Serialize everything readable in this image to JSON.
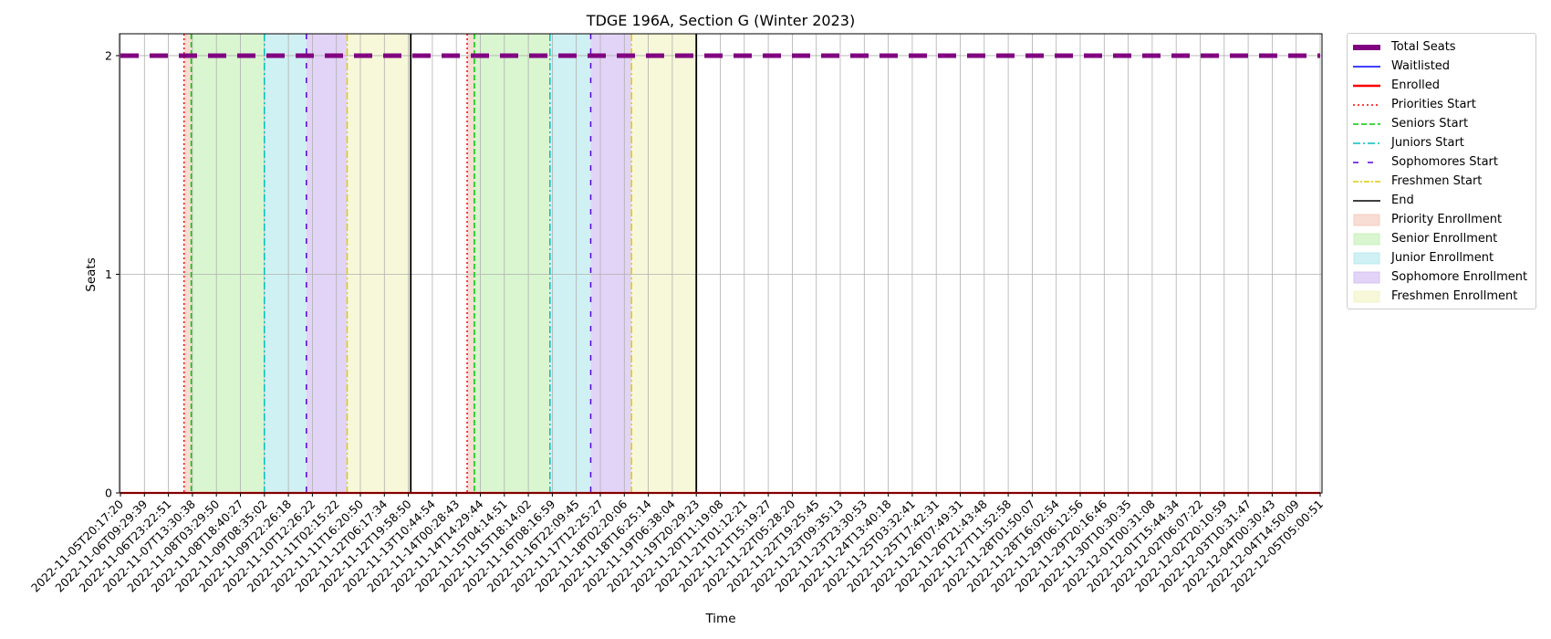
{
  "chart_data": {
    "type": "line",
    "title": "TDGE 196A, Section G (Winter 2023)",
    "xlabel": "Time",
    "ylabel": "Seats",
    "ylim": [
      0,
      2.1
    ],
    "yticks": [
      0,
      1,
      2
    ],
    "grid": true,
    "legend_position": "outside-right",
    "x_ticks": [
      "2022-11-05T20:17:20",
      "2022-11-06T09:29:39",
      "2022-11-06T23:22:51",
      "2022-11-07T13:30:38",
      "2022-11-08T03:29:50",
      "2022-11-08T18:40:27",
      "2022-11-09T08:35:02",
      "2022-11-09T22:26:18",
      "2022-11-10T12:26:22",
      "2022-11-11T02:15:22",
      "2022-11-11T16:20:50",
      "2022-11-12T06:17:34",
      "2022-11-12T19:58:50",
      "2022-11-13T10:44:54",
      "2022-11-14T00:28:43",
      "2022-11-14T14:29:44",
      "2022-11-15T04:14:51",
      "2022-11-15T18:14:02",
      "2022-11-16T08:16:59",
      "2022-11-16T22:09:45",
      "2022-11-17T12:25:27",
      "2022-11-18T02:20:06",
      "2022-11-18T16:25:14",
      "2022-11-19T06:38:04",
      "2022-11-19T20:29:23",
      "2022-11-20T11:19:08",
      "2022-11-21T01:12:21",
      "2022-11-21T15:19:27",
      "2022-11-22T05:28:20",
      "2022-11-22T19:25:45",
      "2022-11-23T09:35:13",
      "2022-11-23T23:30:53",
      "2022-11-24T13:40:18",
      "2022-11-25T03:32:41",
      "2022-11-25T17:42:31",
      "2022-11-26T07:49:31",
      "2022-11-26T21:43:48",
      "2022-11-27T11:52:58",
      "2022-11-28T01:50:07",
      "2022-11-28T16:02:54",
      "2022-11-29T06:12:56",
      "2022-11-29T20:16:46",
      "2022-11-30T10:30:35",
      "2022-12-01T00:31:08",
      "2022-12-01T15:44:34",
      "2022-12-02T06:07:22",
      "2022-12-02T20:10:59",
      "2022-12-03T10:31:47",
      "2022-12-04T00:30:43",
      "2022-12-04T14:50:09",
      "2022-12-05T05:00:51"
    ],
    "series": [
      {
        "name": "Total Seats",
        "color": "#800080",
        "style": "dashed-thick",
        "values": [
          2,
          2,
          2,
          2,
          2,
          2,
          2,
          2,
          2,
          2,
          2,
          2,
          2,
          2,
          2,
          2,
          2,
          2,
          2,
          2,
          2,
          2,
          2,
          2,
          2,
          2,
          2,
          2,
          2,
          2,
          2,
          2,
          2,
          2,
          2,
          2,
          2,
          2,
          2,
          2,
          2,
          2,
          2,
          2,
          2,
          2,
          2,
          2,
          2,
          2,
          2
        ]
      },
      {
        "name": "Waitlisted",
        "color": "#0000ff",
        "style": "solid",
        "values": [
          0,
          0,
          0,
          0,
          0,
          0,
          0,
          0,
          0,
          0,
          0,
          0,
          0,
          0,
          0,
          0,
          0,
          0,
          0,
          0,
          0,
          0,
          0,
          0,
          0,
          0,
          0,
          0,
          0,
          0,
          0,
          0,
          0,
          0,
          0,
          0,
          0,
          0,
          0,
          0,
          0,
          0,
          0,
          0,
          0,
          0,
          0,
          0,
          0,
          0,
          0
        ]
      },
      {
        "name": "Enrolled",
        "color": "#ff0000",
        "style": "solid-thick",
        "values": [
          0,
          0,
          0,
          0,
          0,
          0,
          0,
          0,
          0,
          0,
          0,
          0,
          0,
          0,
          0,
          0,
          0,
          0,
          0,
          0,
          0,
          0,
          0,
          0,
          0,
          0,
          0,
          0,
          0,
          0,
          0,
          0,
          0,
          0,
          0,
          0,
          0,
          0,
          0,
          0,
          0,
          0,
          0,
          0,
          0,
          0,
          0,
          0,
          0,
          0,
          0
        ]
      }
    ],
    "vertical_lines": [
      {
        "name": "Priorities Start",
        "color": "#ff0000",
        "style": "dotted",
        "at": [
          2.65,
          14.45
        ]
      },
      {
        "name": "Seniors Start",
        "color": "#00cc00",
        "style": "dashed",
        "at": [
          2.95,
          14.75
        ]
      },
      {
        "name": "Juniors Start",
        "color": "#00bfbf",
        "style": "dashdot",
        "at": [
          6.0,
          17.9
        ]
      },
      {
        "name": "Sophomores Start",
        "color": "#5500dd",
        "style": "loosedash",
        "at": [
          7.75,
          19.6
        ]
      },
      {
        "name": "Freshmen Start",
        "color": "#ddcc00",
        "style": "dashdot",
        "at": [
          9.45,
          21.3
        ]
      },
      {
        "name": "End",
        "color": "#000000",
        "style": "solid",
        "at": [
          12.1,
          24.0
        ]
      }
    ],
    "shaded_regions": [
      {
        "name": "Priority Enrollment",
        "color": "#f4c7b8",
        "spans": [
          [
            2.65,
            2.95
          ],
          [
            14.45,
            14.75
          ]
        ]
      },
      {
        "name": "Senior Enrollment",
        "color": "#bff0b0",
        "spans": [
          [
            2.95,
            6.0
          ],
          [
            14.75,
            17.9
          ]
        ]
      },
      {
        "name": "Junior Enrollment",
        "color": "#b0e8ec",
        "spans": [
          [
            6.0,
            7.75
          ],
          [
            17.9,
            19.6
          ]
        ]
      },
      {
        "name": "Sophomore Enrollment",
        "color": "#cfb8f0",
        "spans": [
          [
            7.75,
            9.45
          ],
          [
            19.6,
            21.3
          ]
        ]
      },
      {
        "name": "Freshmen Enrollment",
        "color": "#f1f3c0",
        "spans": [
          [
            9.45,
            12.1
          ],
          [
            21.3,
            24.0
          ]
        ]
      }
    ]
  },
  "legend": [
    {
      "label": "Total Seats",
      "kind": "line",
      "color": "#800080",
      "dash": "",
      "width": 6
    },
    {
      "label": "Waitlisted",
      "kind": "line",
      "color": "#0000ff",
      "dash": "",
      "width": 1.5
    },
    {
      "label": "Enrolled",
      "kind": "line",
      "color": "#ff0000",
      "dash": "",
      "width": 2.5
    },
    {
      "label": "Priorities Start",
      "kind": "line",
      "color": "#ff0000",
      "dash": "2,3",
      "width": 1.5
    },
    {
      "label": "Seniors Start",
      "kind": "line",
      "color": "#00cc00",
      "dash": "6,3",
      "width": 1.5
    },
    {
      "label": "Juniors Start",
      "kind": "line",
      "color": "#00bfbf",
      "dash": "8,3,2,3",
      "width": 1.5
    },
    {
      "label": "Sophomores Start",
      "kind": "line",
      "color": "#5500dd",
      "dash": "6,10",
      "width": 1.5
    },
    {
      "label": "Freshmen Start",
      "kind": "line",
      "color": "#ddcc00",
      "dash": "6,2,2,2",
      "width": 1.5
    },
    {
      "label": "End",
      "kind": "line",
      "color": "#000000",
      "dash": "",
      "width": 1.5
    },
    {
      "label": "Priority Enrollment",
      "kind": "patch",
      "color": "#f4c7b8"
    },
    {
      "label": "Senior Enrollment",
      "kind": "patch",
      "color": "#bff0b0"
    },
    {
      "label": "Junior Enrollment",
      "kind": "patch",
      "color": "#b0e8ec"
    },
    {
      "label": "Sophomore Enrollment",
      "kind": "patch",
      "color": "#cfb8f0"
    },
    {
      "label": "Freshmen Enrollment",
      "kind": "patch",
      "color": "#f1f3c0"
    }
  ]
}
